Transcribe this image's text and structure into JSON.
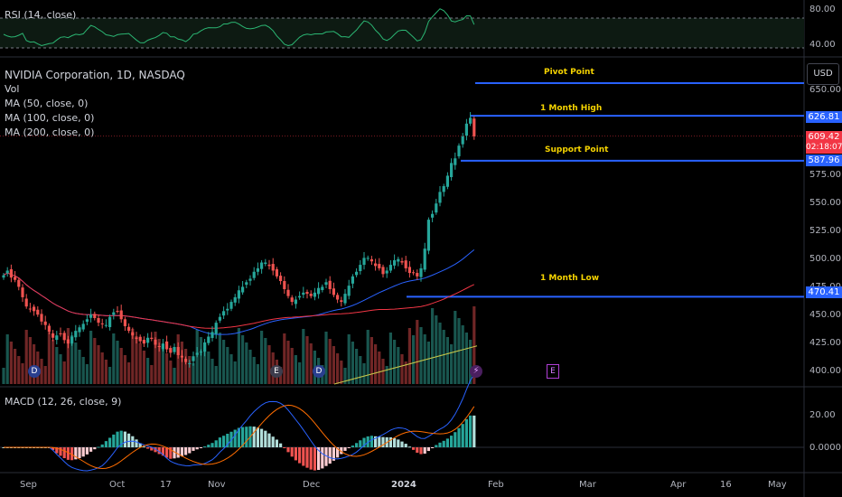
{
  "rsi": {
    "label": "RSI (14, close)",
    "levels": [
      "80.00",
      "40.00"
    ]
  },
  "legend": {
    "title": "NVIDIA Corporation, 1D, NASDAQ",
    "vol": "Vol",
    "ma50": "MA (50, close, 0)",
    "ma100": "MA (100, close, 0)",
    "ma200": "MA (200, close, 0)"
  },
  "currency": "USD",
  "price_axis": [
    "650.00",
    "575.00",
    "550.00",
    "525.00",
    "500.00",
    "475.00",
    "450.00",
    "425.00",
    "400.00"
  ],
  "price_tags": {
    "high": "626.81",
    "last": "609.42",
    "countdown": "02:18:07",
    "support": "587.96",
    "low": "470.41"
  },
  "annotations": {
    "pivot": "Pivot Point",
    "high": "1 Month High",
    "support": "Support Point",
    "low": "1 Month Low"
  },
  "macd": {
    "label": "MACD (12, 26, close, 9)",
    "levels": [
      "20.00",
      "0.0000"
    ]
  },
  "x_axis": [
    "Sep",
    "Oct",
    "17",
    "Nov",
    "Dec",
    "2024",
    "Feb",
    "Mar",
    "Apr",
    "16",
    "May"
  ],
  "events": [
    "D",
    "E",
    "D",
    "E"
  ],
  "colors": {
    "up": "#26a69a",
    "down": "#ef5350",
    "line": "#2962ff",
    "ma50": "#2962ff",
    "ma100": "#f23645",
    "ma200": "#c8c84a",
    "label": "#f5d300"
  },
  "chart_data": {
    "type": "candlestick",
    "ylim": [
      395,
      655
    ],
    "levels": {
      "pivot_point": 650,
      "month_high": 626.81,
      "support_point": 587.96,
      "month_low": 470.41,
      "last": 609.42
    },
    "close": [
      489,
      493,
      487,
      485,
      479,
      470,
      462,
      460,
      458,
      455,
      449,
      446,
      440,
      435,
      437,
      438,
      433,
      430,
      436,
      441,
      444,
      447,
      451,
      455,
      452,
      448,
      447,
      446,
      453,
      457,
      458,
      451,
      445,
      441,
      437,
      434,
      432,
      430,
      435,
      434,
      429,
      427,
      430,
      425,
      422,
      427,
      420,
      418,
      414,
      413,
      419,
      422,
      423,
      431,
      436,
      440,
      448,
      453,
      458,
      460,
      466,
      470,
      476,
      479,
      483,
      486,
      492,
      495,
      500,
      500,
      497,
      493,
      488,
      484,
      477,
      471,
      466,
      468,
      471,
      474,
      473,
      471,
      474,
      478,
      479,
      483,
      477,
      472,
      468,
      466,
      473,
      480,
      488,
      492,
      498,
      504,
      504,
      501,
      497,
      495,
      490,
      493,
      498,
      502,
      503,
      500,
      495,
      491,
      491,
      488,
      495,
      512,
      537,
      542,
      551,
      561,
      566,
      575,
      586,
      590,
      601,
      609,
      620,
      625,
      609
    ]
  }
}
